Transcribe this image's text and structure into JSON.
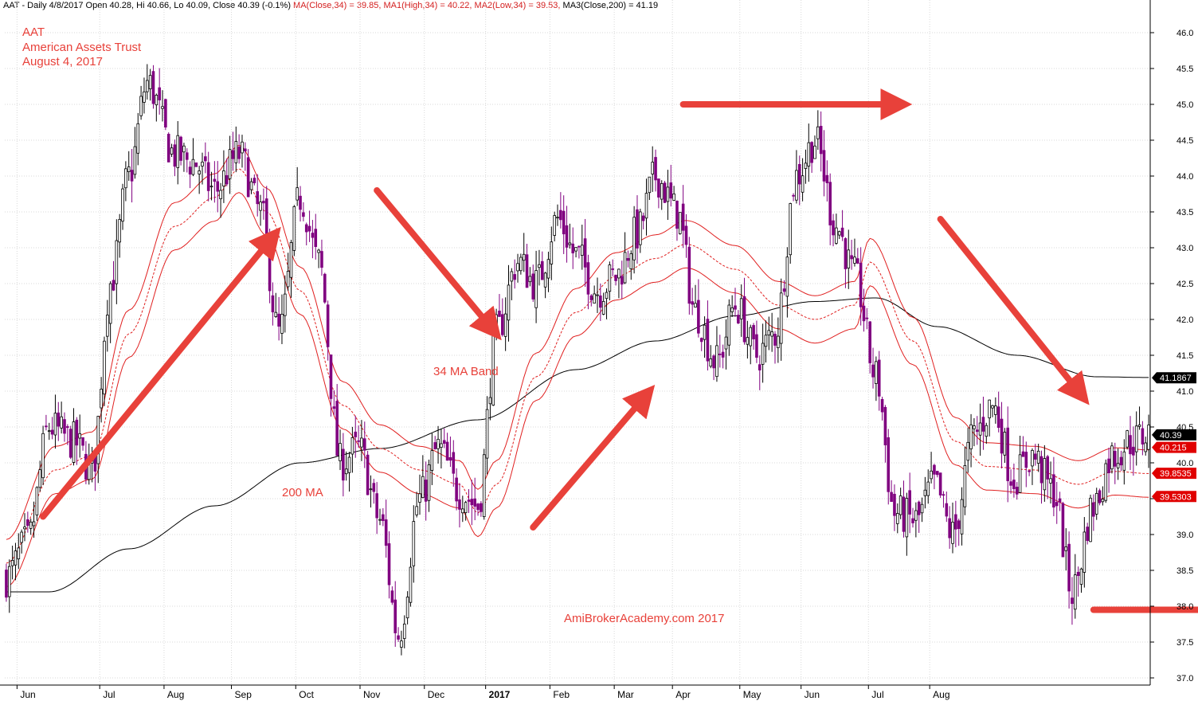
{
  "header": {
    "symbol": "AAT",
    "info_prefix": " - Daily 4/8/2017 Open 40.28, Hi 40.66, Lo 40.09, Close 40.39 (-0.1%) ",
    "ma_text": "MA(Close,34) = 39.85,",
    "ma1_text": "MA1(High,34) = 40.22,",
    "ma2_text": "MA2(Low,34) = 39.53,",
    "ma3_text": "MA3(Close,200) = 41.19"
  },
  "overlay": {
    "line1": "AAT",
    "line2": "American Assets Trust",
    "line3": "August 4, 2017"
  },
  "annotations": {
    "band": "34 MA Band",
    "ma200": "200 MA",
    "watermark": "AmiBrokerAcademy.com  2017"
  },
  "chart_data": {
    "type": "candlestick",
    "ylim": [
      36.9,
      46.3
    ],
    "y_ticks": [
      "37.0",
      "37.5",
      "38.0",
      "38.5",
      "39.0",
      "39.5",
      "40.0",
      "40.5",
      "41.0",
      "41.5",
      "42.0",
      "42.5",
      "43.0",
      "43.5",
      "44.0",
      "44.5",
      "45.0",
      "45.5",
      "46.0"
    ],
    "x_labels": [
      "Jun",
      "Jul",
      "Aug",
      "Sep",
      "Oct",
      "Nov",
      "Dec",
      "2017",
      "Feb",
      "Mar",
      "Apr",
      "May",
      "Jun",
      "Jul",
      "Aug"
    ],
    "price_tags": [
      {
        "label": "41.1867",
        "value": 41.1867,
        "color": "#000000"
      },
      {
        "label": "40.39",
        "value": 40.39,
        "color": "#000000"
      },
      {
        "label": "40.215",
        "value": 40.215,
        "color": "#e00000"
      },
      {
        "label": "39.8535",
        "value": 39.8535,
        "color": "#e00000"
      },
      {
        "label": "39.5303",
        "value": 39.5303,
        "color": "#e00000"
      }
    ],
    "price_anchors": [
      [
        0,
        38.4
      ],
      [
        7,
        38.9
      ],
      [
        14,
        40.5
      ],
      [
        22,
        40.3
      ],
      [
        28,
        39.9
      ],
      [
        34,
        42.5
      ],
      [
        40,
        44.0
      ],
      [
        46,
        45.3
      ],
      [
        55,
        44.3
      ],
      [
        61,
        44.2
      ],
      [
        68,
        43.8
      ],
      [
        76,
        44.3
      ],
      [
        83,
        43.5
      ],
      [
        89,
        41.8
      ],
      [
        96,
        43.7
      ],
      [
        102,
        42.8
      ],
      [
        109,
        40.0
      ],
      [
        115,
        40.2
      ],
      [
        122,
        39.2
      ],
      [
        128,
        37.6
      ],
      [
        135,
        39.5
      ],
      [
        141,
        40.2
      ],
      [
        148,
        39.6
      ],
      [
        154,
        39.4
      ],
      [
        160,
        41.8
      ],
      [
        167,
        42.8
      ],
      [
        173,
        42.5
      ],
      [
        180,
        43.4
      ],
      [
        186,
        42.9
      ],
      [
        193,
        42.4
      ],
      [
        199,
        42.6
      ],
      [
        206,
        43.2
      ],
      [
        212,
        44.0
      ],
      [
        219,
        43.5
      ],
      [
        225,
        42.1
      ],
      [
        232,
        41.4
      ],
      [
        238,
        42.2
      ],
      [
        245,
        41.5
      ],
      [
        251,
        41.8
      ],
      [
        258,
        44.0
      ],
      [
        264,
        44.5
      ],
      [
        271,
        43.3
      ],
      [
        277,
        42.6
      ],
      [
        284,
        41.2
      ],
      [
        290,
        39.3
      ],
      [
        297,
        39.2
      ],
      [
        303,
        39.7
      ],
      [
        309,
        39.0
      ],
      [
        316,
        40.4
      ],
      [
        322,
        40.8
      ],
      [
        329,
        39.8
      ],
      [
        335,
        40.1
      ],
      [
        342,
        39.6
      ],
      [
        348,
        38.2
      ],
      [
        355,
        39.4
      ],
      [
        361,
        40.1
      ],
      [
        367,
        40.3
      ],
      [
        373,
        40.4
      ]
    ],
    "ma200_anchors": [
      [
        0,
        38.2
      ],
      [
        14,
        38.2
      ],
      [
        40,
        38.8
      ],
      [
        68,
        39.4
      ],
      [
        96,
        40.0
      ],
      [
        122,
        40.2
      ],
      [
        154,
        40.6
      ],
      [
        186,
        41.3
      ],
      [
        212,
        41.7
      ],
      [
        238,
        42.05
      ],
      [
        264,
        42.25
      ],
      [
        284,
        42.3
      ],
      [
        304,
        41.9
      ],
      [
        330,
        41.5
      ],
      [
        356,
        41.2
      ],
      [
        373,
        41.19
      ]
    ],
    "ma34_anchors": [
      [
        0,
        38.6
      ],
      [
        16,
        39.9
      ],
      [
        28,
        40.1
      ],
      [
        40,
        41.8
      ],
      [
        55,
        43.3
      ],
      [
        68,
        43.7
      ],
      [
        76,
        44.1
      ],
      [
        85,
        43.5
      ],
      [
        96,
        42.4
      ],
      [
        110,
        40.8
      ],
      [
        122,
        40.2
      ],
      [
        135,
        39.9
      ],
      [
        148,
        39.7
      ],
      [
        154,
        39.3
      ],
      [
        160,
        39.7
      ],
      [
        173,
        41.2
      ],
      [
        186,
        42.1
      ],
      [
        199,
        42.6
      ],
      [
        212,
        42.85
      ],
      [
        222,
        43.05
      ],
      [
        238,
        42.7
      ],
      [
        252,
        42.2
      ],
      [
        264,
        42.0
      ],
      [
        277,
        42.2
      ],
      [
        282,
        42.8
      ],
      [
        296,
        41.7
      ],
      [
        310,
        40.3
      ],
      [
        320,
        39.95
      ],
      [
        336,
        39.9
      ],
      [
        350,
        39.7
      ],
      [
        362,
        39.88
      ],
      [
        373,
        39.85
      ]
    ],
    "band_offset": 0.33,
    "arrows": [
      {
        "from": [
          2012,
          39.25
        ],
        "to": [
          2086,
          43.1
        ]
      },
      {
        "from": [
          2121,
          43.8
        ],
        "to": [
          2158,
          41.9
        ]
      },
      {
        "from": [
          2172,
          39.1
        ],
        "to": [
          2208,
          40.9
        ]
      },
      {
        "from": [
          2221,
          45.0
        ],
        "to": [
          2290,
          45.0
        ]
      },
      {
        "from": [
          2305,
          43.4
        ],
        "to": [
          2350,
          41.0
        ]
      },
      {
        "from": [
          2355,
          37.95
        ],
        "to": [
          2430,
          37.95
        ]
      }
    ]
  }
}
